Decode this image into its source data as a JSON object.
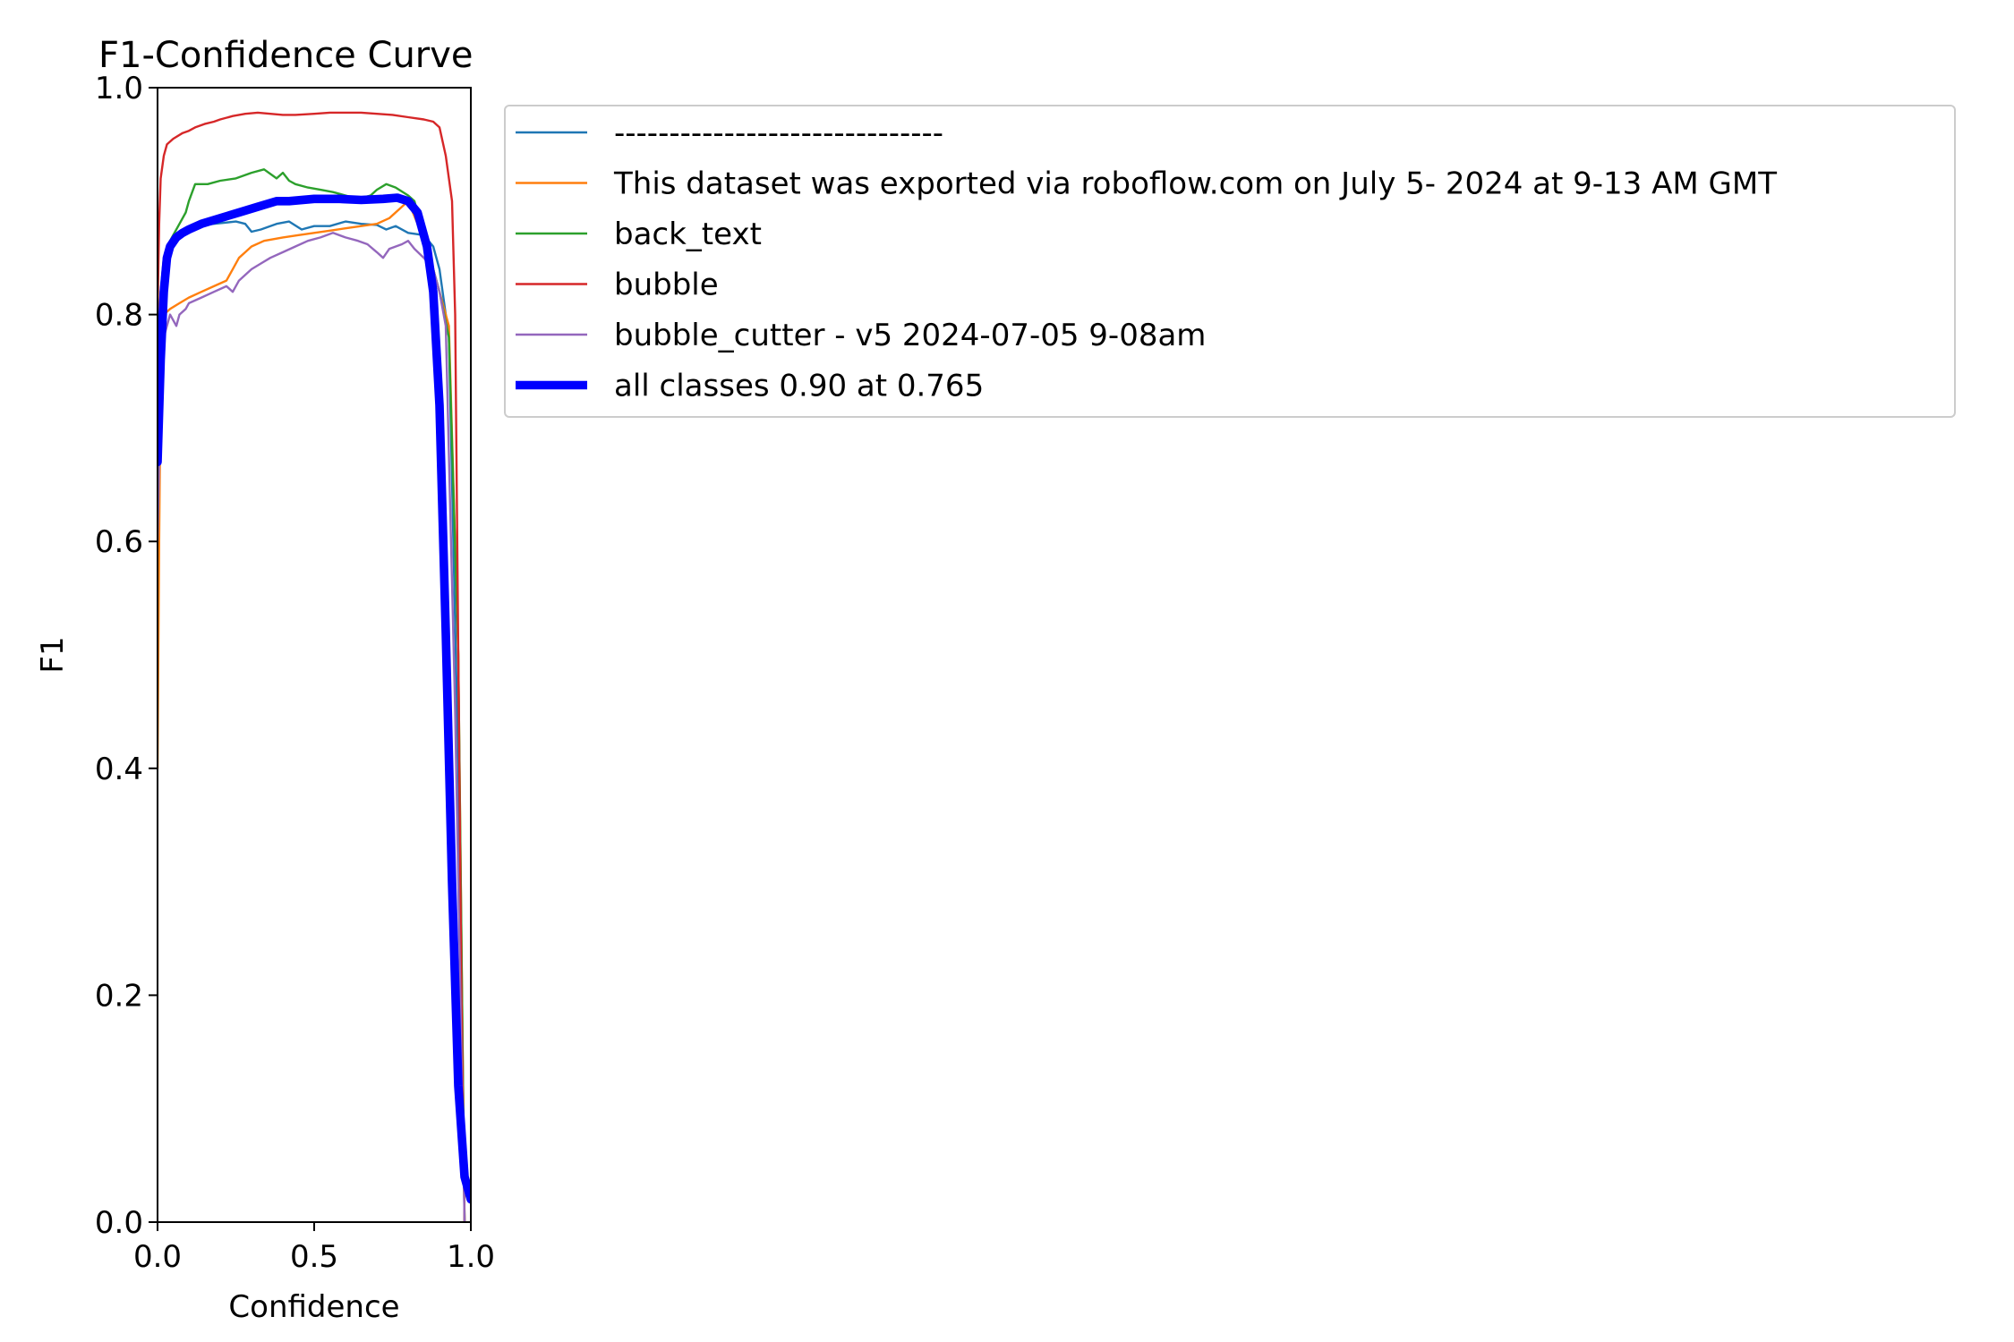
{
  "chart_data": {
    "type": "line",
    "title": "F1-Confidence Curve",
    "xlabel": "Confidence",
    "ylabel": "F1",
    "xlim": [
      0,
      1
    ],
    "ylim": [
      0,
      1
    ],
    "xticks": [
      "0.0",
      "0.5",
      "1.0"
    ],
    "yticks": [
      "0.0",
      "0.2",
      "0.4",
      "0.6",
      "0.8",
      "1.0"
    ],
    "grid": false,
    "legend_position": "outside-right-top",
    "series": [
      {
        "name": "------------------------------",
        "color": "#1f77b4",
        "width": 1,
        "x": [
          0.0,
          0.01,
          0.02,
          0.03,
          0.05,
          0.08,
          0.12,
          0.18,
          0.25,
          0.28,
          0.3,
          0.33,
          0.38,
          0.42,
          0.46,
          0.5,
          0.55,
          0.6,
          0.65,
          0.7,
          0.73,
          0.76,
          0.8,
          0.85,
          0.88,
          0.9,
          0.93,
          0.96,
          0.98
        ],
        "y": [
          0.73,
          0.8,
          0.84,
          0.86,
          0.865,
          0.875,
          0.878,
          0.88,
          0.882,
          0.88,
          0.873,
          0.875,
          0.88,
          0.882,
          0.875,
          0.878,
          0.878,
          0.882,
          0.88,
          0.879,
          0.875,
          0.878,
          0.872,
          0.87,
          0.86,
          0.84,
          0.78,
          0.4,
          0.0
        ]
      },
      {
        "name": "This dataset was exported via roboflow.com on July 5- 2024 at 9-13 AM GMT",
        "color": "#ff7f0e",
        "width": 1,
        "x": [
          0.0,
          0.005,
          0.01,
          0.02,
          0.04,
          0.07,
          0.1,
          0.14,
          0.18,
          0.22,
          0.24,
          0.26,
          0.28,
          0.3,
          0.34,
          0.4,
          0.45,
          0.5,
          0.55,
          0.6,
          0.65,
          0.7,
          0.74,
          0.78,
          0.8,
          0.83,
          0.86,
          0.88,
          0.9,
          0.93,
          0.96,
          0.98
        ],
        "y": [
          0.4,
          0.6,
          0.75,
          0.8,
          0.805,
          0.81,
          0.815,
          0.82,
          0.825,
          0.83,
          0.84,
          0.85,
          0.855,
          0.86,
          0.865,
          0.868,
          0.87,
          0.872,
          0.874,
          0.876,
          0.878,
          0.88,
          0.885,
          0.895,
          0.9,
          0.88,
          0.86,
          0.84,
          0.82,
          0.79,
          0.5,
          0.0
        ]
      },
      {
        "name": "back_text",
        "color": "#2ca02c",
        "width": 1,
        "x": [
          0.0,
          0.01,
          0.02,
          0.03,
          0.05,
          0.07,
          0.09,
          0.1,
          0.12,
          0.13,
          0.16,
          0.2,
          0.25,
          0.3,
          0.34,
          0.38,
          0.4,
          0.42,
          0.44,
          0.48,
          0.52,
          0.56,
          0.6,
          0.64,
          0.68,
          0.7,
          0.73,
          0.76,
          0.8,
          0.82,
          0.84,
          0.86,
          0.88,
          0.9,
          0.93,
          0.96,
          0.98
        ],
        "y": [
          0.76,
          0.82,
          0.85,
          0.86,
          0.87,
          0.88,
          0.89,
          0.9,
          0.915,
          0.915,
          0.915,
          0.918,
          0.92,
          0.925,
          0.928,
          0.92,
          0.925,
          0.918,
          0.915,
          0.912,
          0.91,
          0.908,
          0.905,
          0.902,
          0.905,
          0.91,
          0.915,
          0.912,
          0.905,
          0.9,
          0.88,
          0.86,
          0.84,
          0.82,
          0.78,
          0.5,
          0.0
        ]
      },
      {
        "name": "bubble",
        "color": "#d62728",
        "width": 1,
        "x": [
          0.0,
          0.005,
          0.01,
          0.02,
          0.03,
          0.05,
          0.08,
          0.1,
          0.12,
          0.15,
          0.18,
          0.2,
          0.24,
          0.28,
          0.32,
          0.36,
          0.4,
          0.44,
          0.5,
          0.55,
          0.6,
          0.65,
          0.7,
          0.75,
          0.8,
          0.85,
          0.88,
          0.9,
          0.92,
          0.94,
          0.95,
          0.96,
          0.97,
          0.98
        ],
        "y": [
          0.8,
          0.88,
          0.92,
          0.94,
          0.95,
          0.955,
          0.96,
          0.962,
          0.965,
          0.968,
          0.97,
          0.972,
          0.975,
          0.977,
          0.978,
          0.977,
          0.976,
          0.976,
          0.977,
          0.978,
          0.978,
          0.978,
          0.977,
          0.976,
          0.974,
          0.972,
          0.97,
          0.965,
          0.94,
          0.9,
          0.8,
          0.5,
          0.2,
          0.0
        ]
      },
      {
        "name": "bubble_cutter - v5 2024-07-05 9-08am",
        "color": "#9467bd",
        "width": 1,
        "x": [
          0.0,
          0.01,
          0.02,
          0.04,
          0.06,
          0.07,
          0.09,
          0.1,
          0.14,
          0.18,
          0.22,
          0.24,
          0.26,
          0.28,
          0.3,
          0.33,
          0.36,
          0.4,
          0.44,
          0.48,
          0.52,
          0.56,
          0.6,
          0.64,
          0.67,
          0.7,
          0.72,
          0.74,
          0.78,
          0.8,
          0.82,
          0.85,
          0.88,
          0.9,
          0.92,
          0.95,
          0.98
        ],
        "y": [
          0.6,
          0.74,
          0.78,
          0.8,
          0.79,
          0.8,
          0.805,
          0.81,
          0.815,
          0.82,
          0.825,
          0.82,
          0.83,
          0.835,
          0.84,
          0.845,
          0.85,
          0.855,
          0.86,
          0.865,
          0.868,
          0.872,
          0.868,
          0.865,
          0.862,
          0.855,
          0.85,
          0.858,
          0.862,
          0.865,
          0.858,
          0.85,
          0.84,
          0.82,
          0.79,
          0.45,
          0.0
        ]
      },
      {
        "name": "all classes 0.90 at 0.765",
        "color": "#0000ff",
        "width": 4,
        "x": [
          0.0,
          0.01,
          0.02,
          0.03,
          0.04,
          0.06,
          0.08,
          0.1,
          0.14,
          0.2,
          0.26,
          0.32,
          0.38,
          0.42,
          0.5,
          0.58,
          0.65,
          0.72,
          0.765,
          0.8,
          0.83,
          0.86,
          0.88,
          0.9,
          0.92,
          0.94,
          0.96,
          0.98,
          1.0
        ],
        "y": [
          0.67,
          0.76,
          0.82,
          0.85,
          0.86,
          0.868,
          0.872,
          0.875,
          0.88,
          0.885,
          0.89,
          0.895,
          0.9,
          0.9,
          0.902,
          0.902,
          0.901,
          0.902,
          0.903,
          0.9,
          0.89,
          0.86,
          0.82,
          0.72,
          0.52,
          0.3,
          0.12,
          0.04,
          0.02
        ]
      }
    ]
  }
}
